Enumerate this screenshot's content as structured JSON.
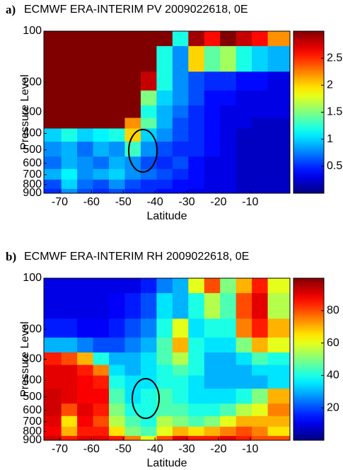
{
  "chart_data": [
    {
      "type": "heatmap",
      "panel_label": "a)",
      "title": "ECMWF ERA-INTERIM PV 2009022618, 0E",
      "xlabel": "Latitude",
      "ylabel": "Pressure Level",
      "colormap": "jet",
      "yscale": "log",
      "y_reversed": true,
      "x": [
        -72,
        -67,
        -62,
        -57,
        -52,
        -47,
        -42,
        -37,
        -32,
        -27,
        -22,
        -17,
        -12,
        -7,
        -2
      ],
      "y": [
        100,
        150,
        200,
        250,
        300,
        350,
        400,
        500,
        600,
        700,
        800,
        900
      ],
      "z": [
        [
          3,
          3,
          3,
          3,
          3,
          3,
          3,
          3,
          1.2,
          2.9,
          2.6,
          3,
          2.8,
          2.6,
          2.2
        ],
        [
          3,
          3,
          3,
          3,
          3,
          3,
          3,
          1.2,
          0.8,
          2.0,
          1.4,
          1.6,
          1.2,
          1.0,
          0.9
        ],
        [
          3,
          3,
          3,
          3,
          3,
          3,
          2.8,
          1.2,
          0.8,
          0.6,
          0.5,
          0.5,
          0.4,
          0.4,
          0.3
        ],
        [
          3,
          3,
          3,
          3,
          3,
          3,
          1.5,
          1.0,
          0.8,
          0.6,
          0.4,
          0.4,
          0.3,
          0.3,
          0.3
        ],
        [
          3,
          3,
          3,
          3,
          3,
          3,
          1.2,
          0.9,
          0.7,
          0.5,
          0.4,
          0.3,
          0.3,
          0.3,
          0.3
        ],
        [
          3,
          3,
          3,
          3,
          3,
          2.2,
          1.4,
          0.9,
          0.6,
          0.5,
          0.4,
          0.3,
          0.3,
          0.2,
          0.2
        ],
        [
          1.0,
          1.2,
          1.0,
          1.1,
          1.2,
          2.0,
          1.0,
          0.8,
          0.6,
          0.5,
          0.4,
          0.3,
          0.2,
          0.2,
          0.2
        ],
        [
          0.8,
          0.9,
          0.7,
          0.9,
          0.8,
          1.3,
          0.8,
          0.6,
          0.5,
          0.5,
          0.4,
          0.3,
          0.2,
          0.2,
          0.2
        ],
        [
          0.7,
          0.9,
          0.8,
          0.7,
          0.9,
          0.8,
          0.6,
          0.5,
          0.6,
          0.4,
          0.3,
          0.3,
          0.2,
          0.2,
          0.2
        ],
        [
          0.9,
          1.1,
          0.8,
          0.9,
          1.0,
          0.8,
          0.7,
          0.6,
          0.5,
          0.4,
          0.3,
          0.3,
          0.2,
          0.2,
          0.2
        ],
        [
          0.6,
          1.0,
          0.7,
          0.6,
          0.8,
          0.6,
          0.5,
          0.5,
          0.4,
          0.4,
          0.3,
          0.3,
          0.2,
          0.2,
          0.2
        ],
        [
          0.5,
          0.8,
          0.6,
          0.5,
          0.6,
          0.5,
          0.5,
          0.4,
          0.4,
          0.3,
          0.3,
          0.3,
          0.2,
          0.2,
          0.2
        ]
      ],
      "xlim": [
        -75,
        2.5
      ],
      "ylim": [
        100,
        900
      ],
      "xticks": [
        -70,
        -60,
        -50,
        -40,
        -30,
        -20,
        -10
      ],
      "yticks": [
        100,
        200,
        300,
        400,
        500,
        600,
        700,
        800,
        900
      ],
      "clim": [
        0,
        3
      ],
      "cticks": [
        0.5,
        1,
        1.5,
        2,
        2.5
      ]
    },
    {
      "type": "heatmap",
      "panel_label": "b)",
      "title": "ECMWF ERA-INTERIM RH 2009022618, 0E",
      "xlabel": "Latitude",
      "ylabel": "Pressure Level",
      "colormap": "jet",
      "yscale": "log",
      "y_reversed": true,
      "x": [
        -72,
        -67,
        -62,
        -57,
        -52,
        -47,
        -42,
        -37,
        -32,
        -27,
        -22,
        -17,
        -12,
        -7,
        -2
      ],
      "y": [
        100,
        150,
        200,
        250,
        300,
        350,
        400,
        500,
        600,
        700,
        800,
        900
      ],
      "z": [
        [
          10,
          10,
          10,
          10,
          10,
          10,
          15,
          25,
          30,
          60,
          80,
          50,
          70,
          85,
          60
        ],
        [
          10,
          10,
          10,
          10,
          12,
          15,
          20,
          35,
          30,
          40,
          55,
          45,
          80,
          90,
          55
        ],
        [
          15,
          15,
          12,
          12,
          15,
          20,
          25,
          40,
          60,
          35,
          40,
          40,
          75,
          85,
          70
        ],
        [
          30,
          30,
          25,
          20,
          20,
          25,
          30,
          45,
          70,
          40,
          35,
          35,
          50,
          70,
          60
        ],
        [
          85,
          80,
          70,
          40,
          30,
          30,
          35,
          45,
          55,
          40,
          30,
          30,
          35,
          45,
          40
        ],
        [
          90,
          90,
          85,
          75,
          35,
          30,
          35,
          40,
          45,
          40,
          30,
          30,
          30,
          35,
          35
        ],
        [
          90,
          90,
          88,
          85,
          40,
          35,
          35,
          40,
          40,
          35,
          30,
          30,
          30,
          30,
          35
        ],
        [
          92,
          90,
          88,
          88,
          45,
          35,
          40,
          45,
          40,
          35,
          35,
          35,
          40,
          50,
          70
        ],
        [
          92,
          80,
          90,
          85,
          50,
          40,
          40,
          45,
          45,
          40,
          40,
          45,
          55,
          60,
          75
        ],
        [
          90,
          65,
          88,
          80,
          55,
          45,
          40,
          55,
          50,
          45,
          50,
          60,
          70,
          70,
          70
        ],
        [
          88,
          70,
          85,
          85,
          65,
          50,
          45,
          60,
          70,
          65,
          70,
          75,
          80,
          75,
          65
        ],
        [
          92,
          85,
          90,
          90,
          85,
          75,
          60,
          80,
          90,
          85,
          85,
          90,
          85,
          80,
          80
        ]
      ],
      "xlim": [
        -75,
        2.5
      ],
      "ylim": [
        100,
        900
      ],
      "xticks": [
        -70,
        -60,
        -50,
        -40,
        -30,
        -20,
        -10
      ],
      "yticks": [
        100,
        200,
        300,
        400,
        500,
        600,
        700,
        800,
        900
      ],
      "clim": [
        0,
        100
      ],
      "cticks": [
        20,
        40,
        60,
        80
      ]
    }
  ]
}
